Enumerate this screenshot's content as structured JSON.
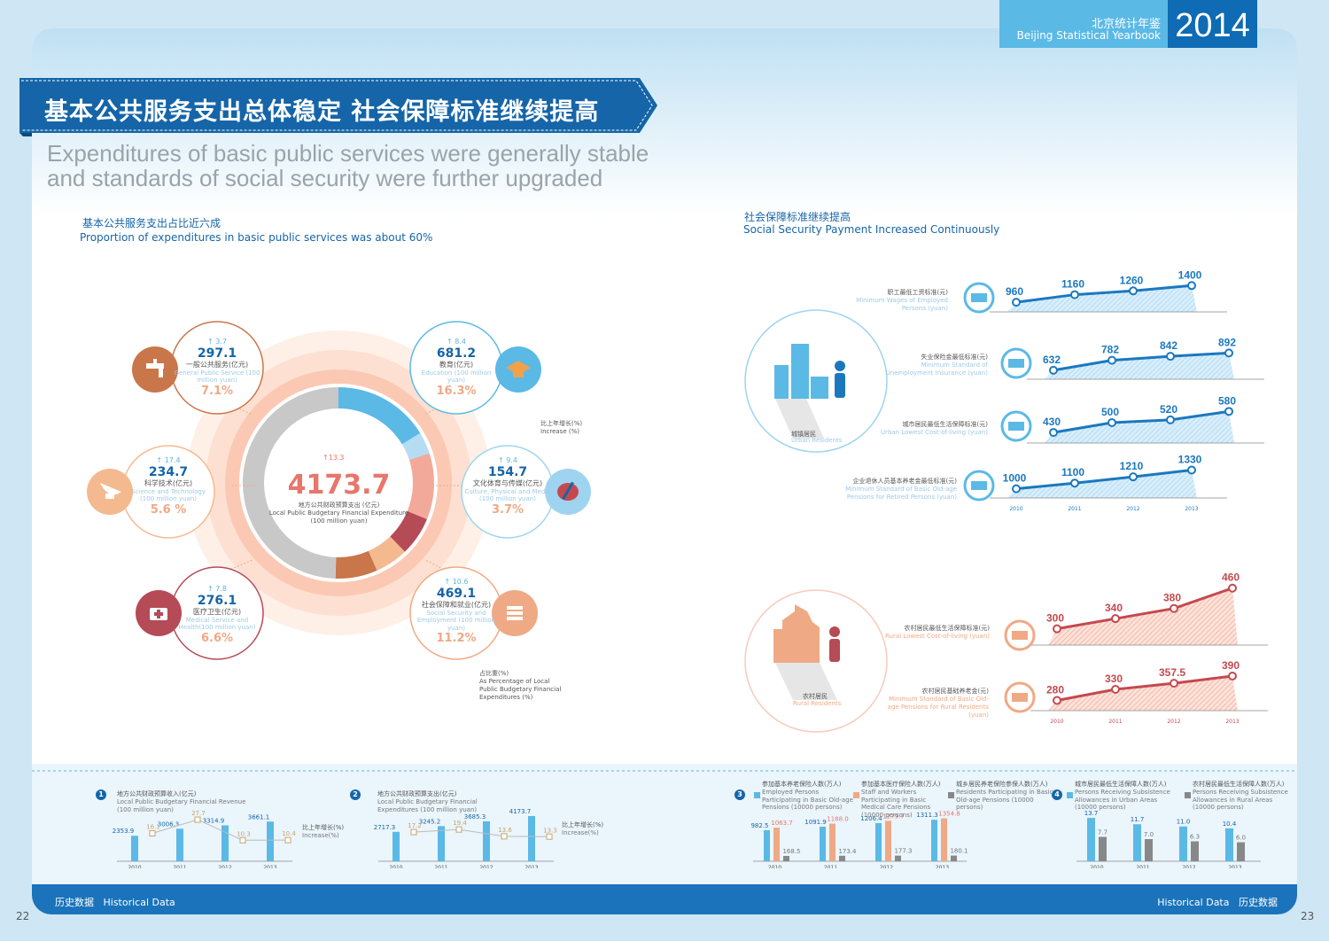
{
  "header": {
    "yearbook_cn": "北京统计年鉴",
    "yearbook_en": "Beijing Statistical Yearbook",
    "year": "2014"
  },
  "banner": {
    "title_cn": "基本公共服务支出总体稳定 社会保障标准继续提高"
  },
  "subtitle": {
    "line1": "Expenditures of basic public services were generally stable",
    "line2": "and standards of social security were further upgraded"
  },
  "left_section": {
    "title_cn": "基本公共服务支出占比近六成",
    "title_en": "Proportion of expenditures in basic public services was about 60%"
  },
  "right_section": {
    "title_cn": "社会保障标准继续提高",
    "title_en": "Social Security Payment Increased Continuously"
  },
  "center": {
    "increase": "13.3",
    "value": "4173.7",
    "label_cn": "地方公共财政预算支出 (亿元)",
    "label_en": "Local Public Budgetary Financial Expenditure (100 million yuan)"
  },
  "nodes": [
    {
      "id": "general",
      "inc": "3.7",
      "value": "297.1",
      "cn": "一般公共服务(亿元)",
      "en": "General Public Service (100 million yuan)",
      "pct": "7.1%",
      "icon": "faucet-icon"
    },
    {
      "id": "education",
      "inc": "8.4",
      "value": "681.2",
      "cn": "教育(亿元)",
      "en": "Education (100 million yuan)",
      "pct": "16.3%",
      "icon": "graduation-cap-icon"
    },
    {
      "id": "science",
      "inc": "17.4",
      "value": "234.7",
      "cn": "科学技术(亿元)",
      "en": "Science and Technology (100 million yuan)",
      "pct": "5.6 %",
      "icon": "satellite-dish-icon"
    },
    {
      "id": "culture",
      "inc": "9.4",
      "value": "154.7",
      "cn": "文化体育与传媒(亿元)",
      "en": "Culture, Physical and Media (100 million yuan)",
      "pct": "3.7%",
      "icon": "palette-icon"
    },
    {
      "id": "health",
      "inc": "7.8",
      "value": "276.1",
      "cn": "医疗卫生(亿元)",
      "en": "Medical Service and Health(100 million yuan)",
      "pct": "6.6%",
      "icon": "medical-kit-icon"
    },
    {
      "id": "social",
      "inc": "10.6",
      "value": "469.1",
      "cn": "社会保障和就业(亿元)",
      "en": "Social Security and Employment (100 million yuan)",
      "pct": "11.2%",
      "icon": "documents-icon"
    }
  ],
  "notes": {
    "increase_cn": "比上年增长(%)",
    "increase_en": "Increase (%)",
    "pct_cn": "占比重(%)",
    "pct_en": "As Percentage of Local Public Budgetary Financial Expenditures (%)"
  },
  "urban": {
    "cn": "城镇居民",
    "en": "Urban Residents"
  },
  "rural": {
    "cn": "农村居民",
    "en": "Rural Residents"
  },
  "chart_data": [
    {
      "type": "donut",
      "title": "4173.7",
      "categories": [
        "一般公共服务",
        "教育",
        "科学技术",
        "文化体育与传媒",
        "医疗卫生",
        "社会保障和就业"
      ],
      "values": [
        7.1,
        16.3,
        5.6,
        3.7,
        6.6,
        11.2
      ]
    },
    {
      "type": "area",
      "name": "职工最低工资标准(元)",
      "label_en": "Minimum Wages of Employed Persons (yuan)",
      "x": [
        "2010",
        "2011",
        "2012",
        "2013"
      ],
      "values": [
        960,
        1160,
        1260,
        1400
      ]
    },
    {
      "type": "area",
      "name": "失业保险金最低标准(元)",
      "label_en": "Minimum Standard of Unemployment Insurance (yuan)",
      "x": [
        "2010",
        "2011",
        "2012",
        "2013"
      ],
      "values": [
        632,
        782,
        842,
        892
      ]
    },
    {
      "type": "area",
      "name": "城市居民最低生活保障标准(元)",
      "label_en": "Urban Lowest Cost-of-living (yuan)",
      "x": [
        "2010",
        "2011",
        "2012",
        "2013"
      ],
      "values": [
        430,
        500,
        520,
        580
      ]
    },
    {
      "type": "area",
      "name": "企业退休人员基本养老金最低标准(元)",
      "label_en": "Minimum Standard of Basic Old-age Pensions for Retired Persons (yuan)",
      "x": [
        "2010",
        "2011",
        "2012",
        "2013"
      ],
      "values": [
        1000,
        1100,
        1210,
        1330
      ]
    },
    {
      "type": "area",
      "name": "农村居民最低生活保障标准(元)",
      "label_en": "Rural Lowest Cost-of-living (yuan)",
      "x": [
        "2010",
        "2011",
        "2012",
        "2013"
      ],
      "values": [
        300,
        340,
        380,
        460
      ]
    },
    {
      "type": "area",
      "name": "农村居民基础养老金(元)",
      "label_en": "Minimum Standard of Basic Old-age Pensions for Rural Residents (yuan)",
      "x": [
        "2010",
        "2011",
        "2012",
        "2013"
      ],
      "values": [
        280,
        330,
        357.5,
        390
      ]
    },
    {
      "type": "bar",
      "title_cn": "地方公共财政预算收入(亿元)",
      "title_en": "Local Public Budgetary Financial Revenue (100 million yuan)",
      "x": [
        "2010",
        "2011",
        "2012",
        "2013"
      ],
      "values": [
        2353.9,
        3006.3,
        3314.9,
        3661.1
      ],
      "labels": [
        "2353.9",
        "3006.3",
        "3314.9",
        "3661.1"
      ],
      "increase": [
        16.1,
        27.7,
        10.3,
        10.4
      ],
      "increase_labels": [
        "16.1",
        "27.7",
        "10.3",
        "10.4"
      ],
      "increase_label_cn": "比上年增长(%)",
      "increase_label_en": "Increase(%)"
    },
    {
      "type": "bar",
      "title_cn": "地方公共财政预算支出(亿元)",
      "title_en": "Local Public Budgetary Financial Expenditures (100 million yuan)",
      "x": [
        "2010",
        "2011",
        "2012",
        "2013"
      ],
      "values": [
        2717.3,
        3245.2,
        3685.3,
        4173.7
      ],
      "labels": [
        "2717.3",
        "3245.2",
        "3685.3",
        "4173.7"
      ],
      "increase": [
        17.2,
        19.4,
        13.6,
        13.3
      ],
      "increase_labels": [
        "17.2",
        "19.4",
        "13.6",
        "13.3"
      ],
      "increase_label_cn": "比上年增长(%)",
      "increase_label_en": "Increase(%)"
    },
    {
      "type": "bar",
      "x": [
        "2010",
        "2011",
        "2012",
        "2013"
      ],
      "series": [
        {
          "name": "参加基本养老保险人数(万人)",
          "name_en": "Employed Persons Participating in Basic Old-age Pensions (10000 persons)",
          "values": [
            982.5,
            1091.9,
            1206.4,
            1311.3
          ],
          "labels": [
            "982.5",
            "1091.9",
            "1206.4",
            "1311.3"
          ]
        },
        {
          "name": "参加基本医疗保险人数(万人)",
          "name_en": "Staff and Workers Participating in Basic Medical Care Pensions (10000 persons)",
          "values": [
            1063.7,
            1188.0,
            1279.7,
            1354.8
          ],
          "labels": [
            "1063.7",
            "1188.0",
            "1279.7",
            "1354.8"
          ]
        },
        {
          "name": "城乡居民养老保险参保人数(万人)",
          "name_en": "Residents Participating in Basic Old-age Pensions (10000 persons)",
          "values": [
            168.5,
            173.4,
            177.3,
            180.1
          ],
          "labels": [
            "168.5",
            "173.4",
            "177.3",
            "180.1"
          ]
        }
      ]
    },
    {
      "type": "bar",
      "x": [
        "2010",
        "2011",
        "2012",
        "2013"
      ],
      "series": [
        {
          "name": "城市居民最低生活保障人数(万人)",
          "name_en": "Persons Receiving Subsistence Allowances in Urban Areas (10000 persons)",
          "values": [
            13.7,
            11.7,
            11.0,
            10.4
          ],
          "labels": [
            "13.7",
            "11.7",
            "11.0",
            "10.4"
          ]
        },
        {
          "name": "农村居民最低生活保障人数(万人)",
          "name_en": "Persons Receiving Subsistence Allowances in Rural Areas (10000 persons)",
          "values": [
            7.7,
            7.0,
            6.3,
            6.0
          ],
          "labels": [
            "7.7",
            "7.0",
            "6.3",
            "6.0"
          ]
        }
      ]
    }
  ],
  "footer": {
    "left_cn": "历史数据",
    "left_en": "Historical Data",
    "right_en": "Historical Data",
    "right_cn": "历史数据"
  },
  "pages": {
    "left": "22",
    "right": "23"
  },
  "colors": {
    "primary": "#1565a8",
    "light_blue": "#5bb9e6",
    "salmon": "#f0a985",
    "red": "#c4494f"
  }
}
